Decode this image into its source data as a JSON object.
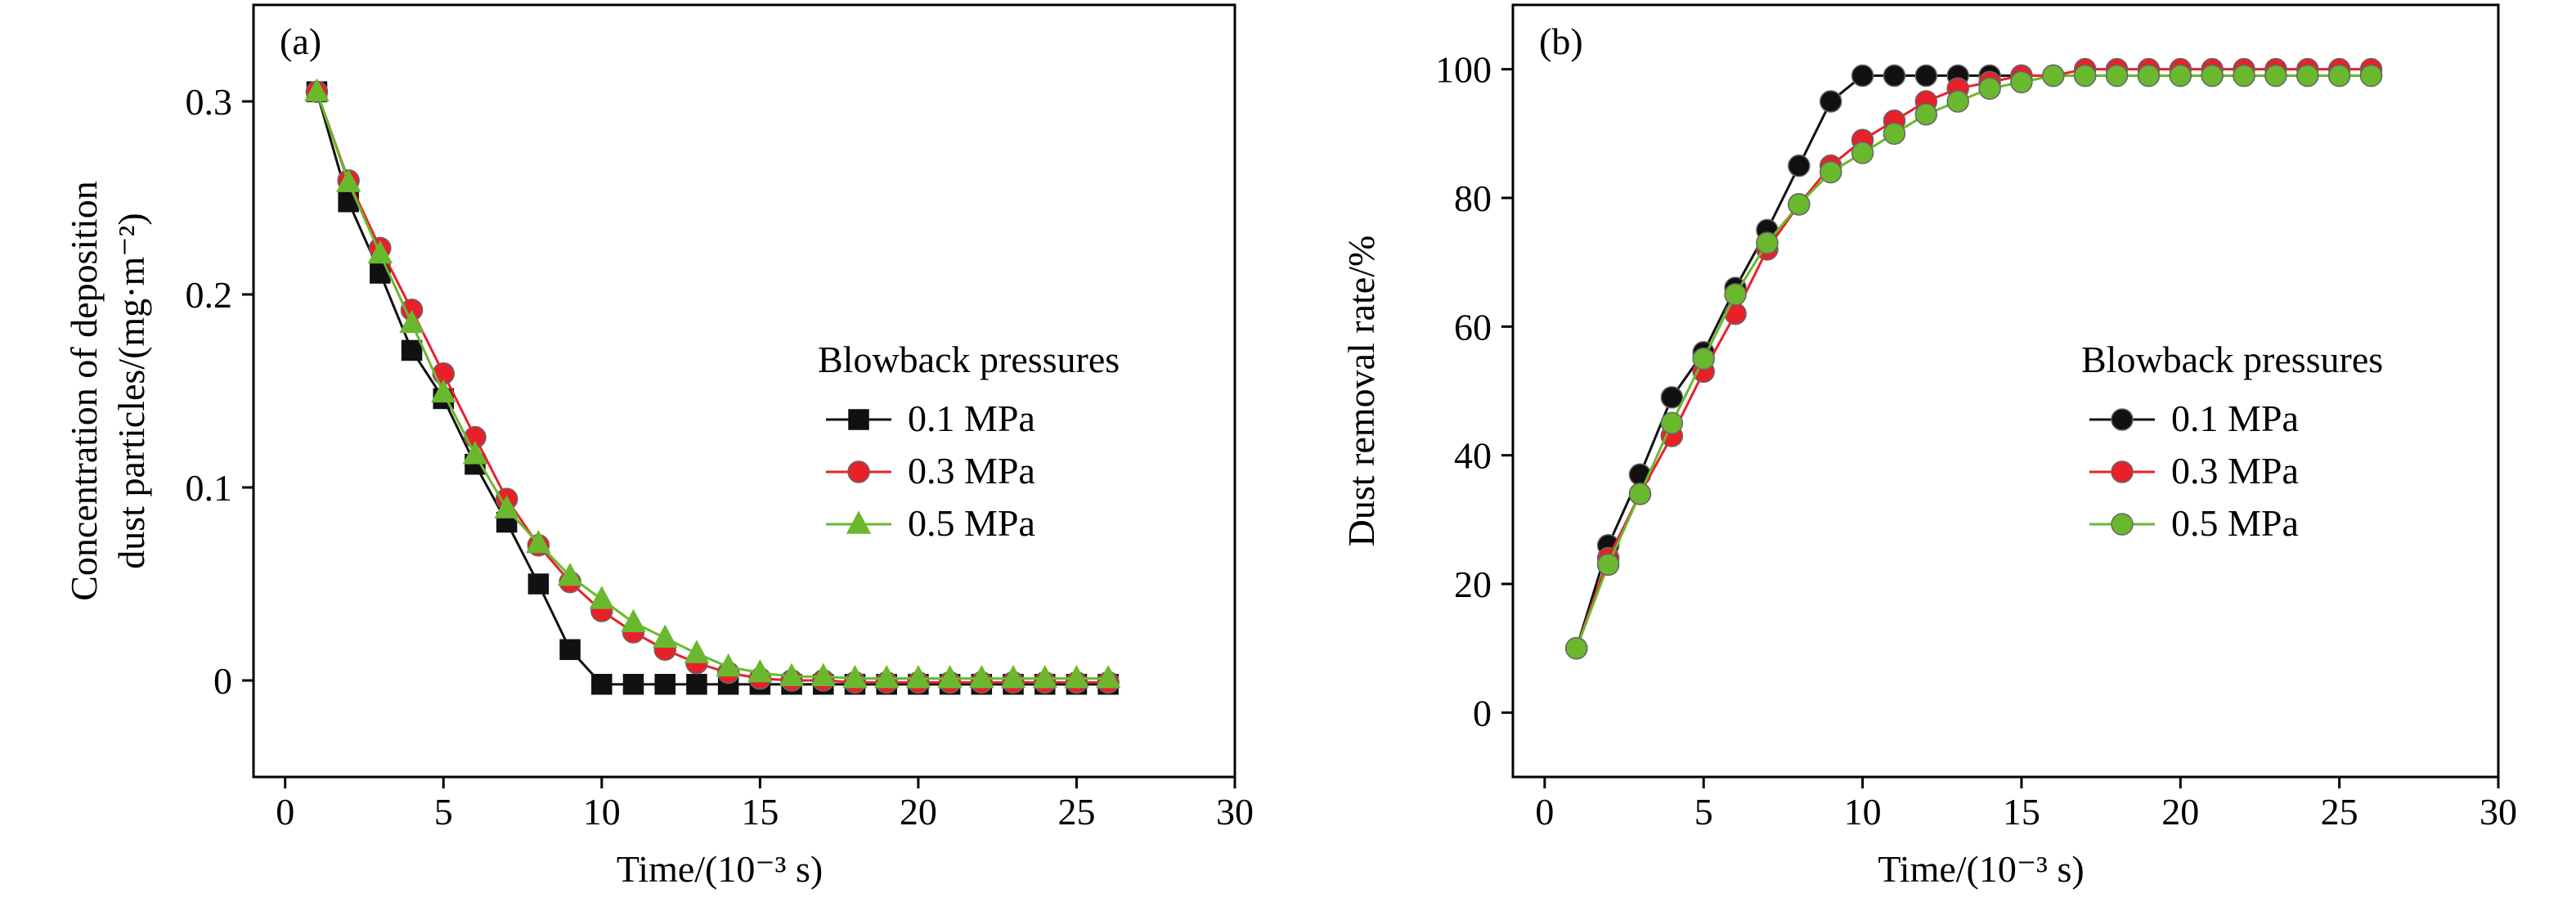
{
  "chart_data": [
    {
      "panel_label": "(a)",
      "type": "line",
      "ylabel_line1": "Concentration of deposition",
      "ylabel_line2": "dust particles/(mg·m⁻²)",
      "xlabel": "Time/(10⁻³ s)",
      "xlim": [
        -1,
        30
      ],
      "ylim": [
        -0.05,
        0.35
      ],
      "xticks": [
        0,
        5,
        10,
        15,
        20,
        25,
        30
      ],
      "yticks": [
        0,
        0.1,
        0.2,
        0.3
      ],
      "ytick_labels": [
        "0",
        "0.1",
        "0.2",
        "0.3"
      ],
      "legend": {
        "title": "Blowback pressures",
        "position": "right"
      },
      "x": [
        1,
        2,
        3,
        4,
        5,
        6,
        7,
        8,
        9,
        10,
        11,
        12,
        13,
        14,
        15,
        16,
        17,
        18,
        19,
        20,
        21,
        22,
        23,
        24,
        25,
        26
      ],
      "series": [
        {
          "name": "0.1 MPa",
          "marker": "square",
          "color": "#111111",
          "values": [
            0.305,
            0.248,
            0.211,
            0.171,
            0.146,
            0.112,
            0.082,
            0.05,
            0.016,
            -0.002,
            -0.002,
            -0.002,
            -0.002,
            -0.002,
            -0.002,
            -0.002,
            -0.002,
            -0.002,
            -0.002,
            -0.002,
            -0.002,
            -0.002,
            -0.002,
            -0.002,
            -0.002,
            -0.002
          ]
        },
        {
          "name": "0.3 MPa",
          "marker": "circle",
          "color": "#e8202a",
          "values": [
            0.305,
            0.259,
            0.224,
            0.192,
            0.159,
            0.126,
            0.094,
            0.07,
            0.051,
            0.036,
            0.025,
            0.016,
            0.009,
            0.004,
            0.001,
            0.0,
            0.0,
            -0.001,
            -0.001,
            -0.001,
            -0.001,
            -0.001,
            -0.001,
            -0.001,
            -0.001,
            -0.001
          ]
        },
        {
          "name": "0.5 MPa",
          "marker": "triangle",
          "color": "#6ab82e",
          "values": [
            0.305,
            0.258,
            0.221,
            0.185,
            0.149,
            0.117,
            0.089,
            0.071,
            0.054,
            0.042,
            0.03,
            0.022,
            0.014,
            0.007,
            0.004,
            0.002,
            0.002,
            0.001,
            0.001,
            0.001,
            0.001,
            0.001,
            0.001,
            0.001,
            0.001,
            0.001
          ]
        }
      ]
    },
    {
      "panel_label": "(b)",
      "type": "line",
      "ylabel_line1": "Dust removal rate/%",
      "ylabel_line2": "",
      "xlabel": "Time/(10⁻³ s)",
      "xlim": [
        -1,
        30
      ],
      "ylim": [
        -10,
        110
      ],
      "xticks": [
        0,
        5,
        10,
        15,
        20,
        25,
        30
      ],
      "yticks": [
        0,
        20,
        40,
        60,
        80,
        100
      ],
      "ytick_labels": [
        "0",
        "20",
        "40",
        "60",
        "80",
        "100"
      ],
      "legend": {
        "title": "Blowback pressures",
        "position": "right"
      },
      "x": [
        1,
        2,
        3,
        4,
        5,
        6,
        7,
        8,
        9,
        10,
        11,
        12,
        13,
        14,
        15,
        16,
        17,
        18,
        19,
        20,
        21,
        22,
        23,
        24,
        25,
        26
      ],
      "series": [
        {
          "name": "0.1 MPa",
          "marker": "circle",
          "color": "#111111",
          "values": [
            10,
            26,
            37,
            49,
            56,
            66,
            75,
            85,
            95,
            99,
            99,
            99,
            99,
            99,
            99,
            99,
            99,
            99,
            99,
            99,
            99,
            99,
            99,
            99,
            99,
            99
          ]
        },
        {
          "name": "0.3 MPa",
          "marker": "circle",
          "color": "#e8202a",
          "values": [
            10,
            24,
            34,
            43,
            53,
            62,
            72,
            79,
            85,
            89,
            92,
            95,
            97,
            98,
            99,
            99,
            100,
            100,
            100,
            100,
            100,
            100,
            100,
            100,
            100,
            100
          ]
        },
        {
          "name": "0.5 MPa",
          "marker": "circle",
          "color": "#6ab82e",
          "values": [
            10,
            23,
            34,
            45,
            55,
            65,
            73,
            79,
            84,
            87,
            90,
            93,
            95,
            97,
            98,
            99,
            99,
            99,
            99,
            99,
            99,
            99,
            99,
            99,
            99,
            99
          ]
        }
      ]
    }
  ]
}
